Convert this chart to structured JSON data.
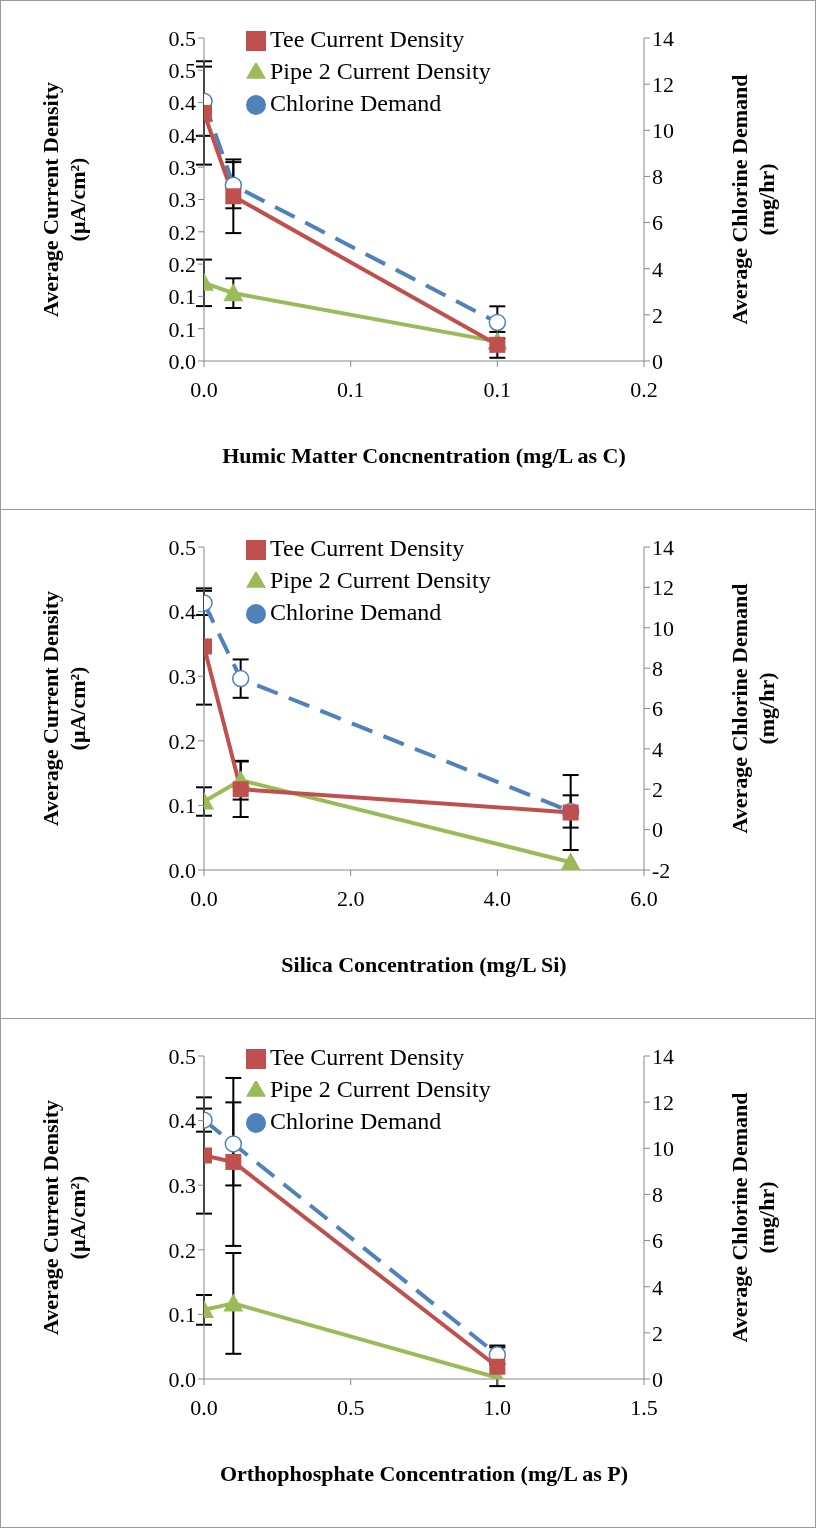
{
  "chart_data": [
    {
      "type": "line",
      "xlabel": "Humic Matter Concnentration (mg/L as C)",
      "ylabel": "Average  Current Density\n(μA/cm²)",
      "y2label": "Average Chlorine Demand\n(mg/hr)",
      "grid": false,
      "x": [
        0,
        0.01,
        0.1
      ],
      "legend": "top",
      "xlim": [
        0,
        0.15
      ],
      "xticks": [
        {
          "value": 0,
          "label": "0.0"
        },
        {
          "value": 0.05,
          "label": "0.1"
        },
        {
          "value": 0.1,
          "label": "0.1"
        },
        {
          "value": 0.15,
          "label": "0.2"
        }
      ],
      "ylim": [
        0,
        0.5
      ],
      "yticks": [
        {
          "value": 0,
          "label": "0.0"
        },
        {
          "value": 0.05,
          "label": "0.1"
        },
        {
          "value": 0.1,
          "label": "0.1"
        },
        {
          "value": 0.15,
          "label": "0.2"
        },
        {
          "value": 0.2,
          "label": "0.2"
        },
        {
          "value": 0.25,
          "label": "0.3"
        },
        {
          "value": 0.3,
          "label": "0.3"
        },
        {
          "value": 0.35,
          "label": "0.4"
        },
        {
          "value": 0.4,
          "label": "0.4"
        },
        {
          "value": 0.45,
          "label": "0.5"
        },
        {
          "value": 0.5,
          "label": "0.5"
        }
      ],
      "y2lim": [
        0,
        14
      ],
      "y2ticks": [
        0,
        2,
        4,
        6,
        8,
        10,
        12,
        14
      ],
      "series": [
        {
          "name": "Tee Current Density",
          "color": "#c0504d",
          "marker": "square",
          "line_style": "solid",
          "values": [
            0.384,
            0.255,
            0.025
          ],
          "errors": [
            0.08,
            0.057,
            0.02
          ]
        },
        {
          "name": "Pipe 2 Current Density",
          "color": "#9bbb59",
          "marker": "triangle",
          "line_style": "solid",
          "values": [
            0.121,
            0.105,
            0.03
          ],
          "errors": [
            0.036,
            0.023,
            null
          ]
        },
        {
          "name": "Chlorine Demand",
          "color": "#4f81bd",
          "marker": "circle",
          "line_style": "dashed",
          "axis": "y2",
          "values": [
            11.26,
            7.62,
            1.67
          ],
          "errors": [
            1.5,
            1.0,
            0.7
          ]
        }
      ]
    },
    {
      "type": "line",
      "xlabel": "Silica Concentration (mg/L Si)",
      "ylabel": "Average  Current Density\n(μA/cm²)",
      "y2label": "Average Chlorine Demand\n(mg/hr)",
      "grid": false,
      "x": [
        0,
        0.5,
        5
      ],
      "legend": "top",
      "xlim": [
        0,
        6
      ],
      "xticks": [
        {
          "value": 0,
          "label": "0.0"
        },
        {
          "value": 2,
          "label": "2.0"
        },
        {
          "value": 4,
          "label": "4.0"
        },
        {
          "value": 6,
          "label": "6.0"
        }
      ],
      "ylim": [
        0,
        0.5
      ],
      "yticks": [
        {
          "value": 0,
          "label": "0.0"
        },
        {
          "value": 0.1,
          "label": "0.1"
        },
        {
          "value": 0.2,
          "label": "0.2"
        },
        {
          "value": 0.3,
          "label": "0.3"
        },
        {
          "value": 0.4,
          "label": "0.4"
        },
        {
          "value": 0.5,
          "label": "0.5"
        }
      ],
      "y2lim": [
        -2,
        14
      ],
      "y2ticks": [
        -2,
        0,
        2,
        4,
        6,
        8,
        10,
        12,
        14
      ],
      "series": [
        {
          "name": "Tee Current Density",
          "color": "#c0504d",
          "marker": "square",
          "line_style": "solid",
          "values": [
            0.346,
            0.125,
            0.089
          ],
          "errors": [
            0.09,
            0.043,
            0.058
          ]
        },
        {
          "name": "Pipe 2 Current Density",
          "color": "#9bbb59",
          "marker": "triangle",
          "line_style": "solid",
          "values": [
            0.106,
            0.139,
            0.012
          ],
          "errors": [
            0.022,
            0.03,
            null
          ]
        },
        {
          "name": "Chlorine Demand",
          "color": "#4f81bd",
          "marker": "circle",
          "line_style": "dashed",
          "axis": "y2",
          "values": [
            11.23,
            7.48,
            0.9
          ],
          "errors": [
            0.6,
            0.95,
            0.8
          ]
        }
      ]
    },
    {
      "type": "line",
      "xlabel": "Orthophosphate Concentration (mg/L as P)",
      "ylabel": "Average  Current Density\n(μA/cm²)",
      "y2label": "Average Chlorine Demand\n(mg/hr)",
      "grid": false,
      "x": [
        0,
        0.1,
        1
      ],
      "legend": "top",
      "xlim": [
        0,
        1.5
      ],
      "xticks": [
        {
          "value": 0,
          "label": "0.0"
        },
        {
          "value": 0.5,
          "label": "0.5"
        },
        {
          "value": 1,
          "label": "1.0"
        },
        {
          "value": 1.5,
          "label": "1.5"
        }
      ],
      "ylim": [
        0,
        0.5
      ],
      "yticks": [
        {
          "value": 0,
          "label": "0.0"
        },
        {
          "value": 0.1,
          "label": "0.1"
        },
        {
          "value": 0.2,
          "label": "0.2"
        },
        {
          "value": 0.3,
          "label": "0.3"
        },
        {
          "value": 0.4,
          "label": "0.4"
        },
        {
          "value": 0.5,
          "label": "0.5"
        }
      ],
      "y2lim": [
        0,
        14
      ],
      "y2ticks": [
        0,
        2,
        4,
        6,
        8,
        10,
        12,
        14
      ],
      "series": [
        {
          "name": "Tee Current Density",
          "color": "#c0504d",
          "marker": "square",
          "line_style": "solid",
          "values": [
            0.346,
            0.336,
            0.019
          ],
          "errors": [
            0.09,
            0.13,
            0.03
          ]
        },
        {
          "name": "Pipe 2 Current Density",
          "color": "#9bbb59",
          "marker": "triangle",
          "line_style": "solid",
          "values": [
            0.107,
            0.117,
            0.002
          ],
          "errors": [
            0.023,
            0.078,
            null
          ]
        },
        {
          "name": "Chlorine Demand",
          "color": "#4f81bd",
          "marker": "circle",
          "line_style": "dashed",
          "axis": "y2",
          "values": [
            11.22,
            10.19,
            1.05
          ],
          "errors": [
            0.5,
            1.8,
            0.4
          ]
        }
      ]
    }
  ]
}
